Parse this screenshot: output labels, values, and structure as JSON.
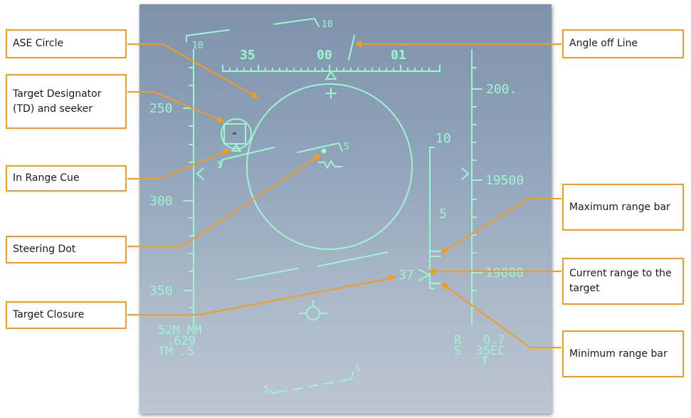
{
  "labels": {
    "ase_circle": "ASE Circle",
    "target_designator": "Target Designator (TD) and seeker",
    "in_range_cue": "In Range Cue",
    "steering_dot": "Steering Dot",
    "target_closure": "Target Closure",
    "angle_off_line": "Angle off Line",
    "max_range_bar": "Maximum range bar",
    "current_range": "Current range to the target",
    "min_range_bar": "Minimum range bar"
  },
  "hud": {
    "heading_35": "35",
    "heading_00": "00",
    "heading_01": "01",
    "bank_10": "10",
    "pitch_10_left": "10",
    "speed_250": "250",
    "speed_300": "300",
    "speed_350": "350",
    "alt_200": "200.",
    "alt_19500": "19500",
    "alt_19000": "19000",
    "range_scale_10": "10",
    "range_scale_5": "5",
    "closure_value": "37",
    "pitch_5_left": "5",
    "pitch_5_right": "5",
    "bottom_5_left": "5",
    "bottom_5_right": "5",
    "weapon_line1": "52M MM",
    "weapon_line2": ".629",
    "weapon_line3": "TM .5",
    "range_r": "R   0.7",
    "range_s": "S  35EC",
    "range_t": "T"
  },
  "colors": {
    "hud_symbology": "#9ef5d2",
    "callout_accent": "#f39c1d"
  }
}
